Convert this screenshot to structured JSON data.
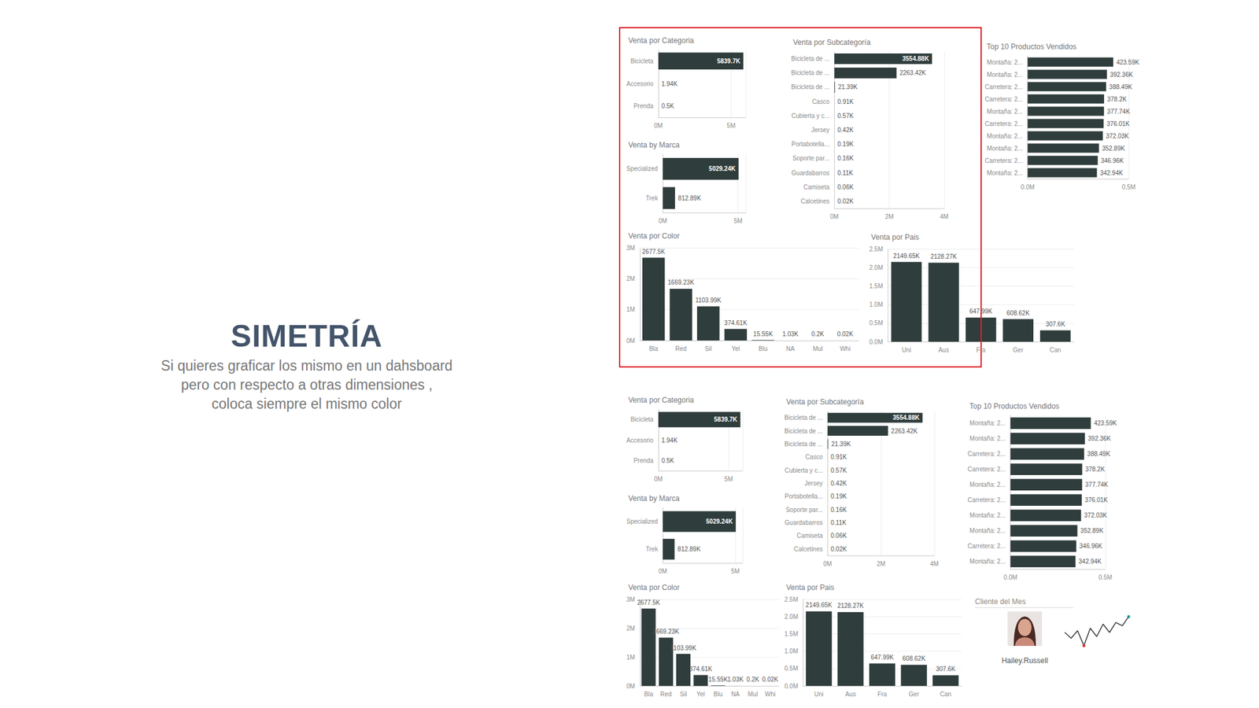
{
  "slide": {
    "title": "SIMETRÍA",
    "text": [
      "Si quieres graficar los mismo en un dahsboard",
      "pero con respecto a otras dimensiones ,",
      "coloca siempre el mismo color"
    ]
  },
  "chart_data": [
    {
      "type": "bar",
      "title": "Venta por Categoria",
      "orientation": "horizontal",
      "categories": [
        "Bicicleta",
        "Accesorio",
        "Prenda"
      ],
      "values": [
        5839700,
        1940,
        500
      ],
      "value_labels": [
        "5839.7K",
        "1.94K",
        "0.5K"
      ],
      "color": "#2f3d3c",
      "xlim": [
        0,
        6000000
      ],
      "xticks": [
        {
          "value": 0,
          "label": "0M"
        },
        {
          "value": 5000000,
          "label": "5M"
        }
      ],
      "grid": true,
      "data_labels": true
    },
    {
      "type": "bar",
      "title": "Venta por Subcategoría",
      "orientation": "horizontal",
      "categories": [
        "Bicicleta de ...",
        "Bicicleta de ...",
        "Bicicleta de ...",
        "Casco",
        "Cubierta y c...",
        "Jersey",
        "Portabotella...",
        "Soporte par...",
        "Guardabarros",
        "Camiseta",
        "Calcetines"
      ],
      "values": [
        3554880,
        2263420,
        21390,
        910,
        570,
        420,
        190,
        160,
        110,
        60,
        20
      ],
      "value_labels": [
        "3554.88K",
        "2263.42K",
        "21.39K",
        "0.91K",
        "0.57K",
        "0.42K",
        "0.19K",
        "0.16K",
        "0.11K",
        "0.06K",
        "0.02K"
      ],
      "color": "#2f3d3c",
      "xlim": [
        0,
        4000000
      ],
      "xticks": [
        {
          "value": 0,
          "label": "0M"
        },
        {
          "value": 2000000,
          "label": "2M"
        },
        {
          "value": 4000000,
          "label": "4M"
        }
      ],
      "grid": true,
      "data_labels": true
    },
    {
      "type": "bar",
      "title": "Top 10 Productos Vendidos",
      "orientation": "horizontal",
      "categories": [
        "Montaña: 2...",
        "Montaña: 2...",
        "Carretera: 2...",
        "Carretera: 2...",
        "Montaña: 2...",
        "Carretera: 2...",
        "Montaña: 2...",
        "Montaña: 2...",
        "Carretera: 2...",
        "Montaña: 2..."
      ],
      "values": [
        423590,
        392360,
        388490,
        378200,
        377740,
        376010,
        372030,
        352890,
        346960,
        342940
      ],
      "value_labels": [
        "423.59K",
        "392.36K",
        "388.49K",
        "378.2K",
        "377.74K",
        "376.01K",
        "372.03K",
        "352.89K",
        "346.96K",
        "342.94K"
      ],
      "color": "#2f3d3c",
      "xlim": [
        0,
        500000
      ],
      "xticks": [
        {
          "value": 0,
          "label": "0.0M"
        },
        {
          "value": 500000,
          "label": "0.5M"
        }
      ],
      "grid": true,
      "data_labels": true
    },
    {
      "type": "bar",
      "title": "Venta by Marca",
      "orientation": "horizontal",
      "categories": [
        "Specialized",
        "Trek"
      ],
      "values": [
        5029240,
        812890
      ],
      "value_labels": [
        "5029.24K",
        "812.89K"
      ],
      "color": "#2f3d3c",
      "xlim": [
        0,
        5500000
      ],
      "xticks": [
        {
          "value": 0,
          "label": "0M"
        },
        {
          "value": 5000000,
          "label": "5M"
        }
      ],
      "grid": true,
      "data_labels": true
    },
    {
      "type": "bar",
      "title": "Venta por Color",
      "categories": [
        "Bla",
        "Red",
        "Sil",
        "Yel",
        "Blu",
        "NA",
        "Mul",
        "Whi"
      ],
      "values": [
        2677500,
        1669230,
        1103990,
        374610,
        15550,
        1030,
        200,
        20
      ],
      "value_labels": [
        "2677.5K",
        "1669.23K",
        "1103.99K",
        "374.61K",
        "15.55K",
        "1.03K",
        "0.2K",
        "0.02K"
      ],
      "color": "#2f3d3c",
      "ylim": [
        0,
        3000000
      ],
      "yticks": [
        {
          "value": 0,
          "label": "0M"
        },
        {
          "value": 1000000,
          "label": "1M"
        },
        {
          "value": 2000000,
          "label": "2M"
        },
        {
          "value": 3000000,
          "label": "3M"
        }
      ],
      "grid": true,
      "data_labels": true
    },
    {
      "type": "bar",
      "title": "Venta por Pais",
      "categories": [
        "Uni",
        "Aus",
        "Fra",
        "Ger",
        "Can"
      ],
      "values": [
        2149650,
        2128270,
        647990,
        608620,
        307600
      ],
      "value_labels": [
        "2149.65K",
        "2128.27K",
        "647.99K",
        "608.62K",
        "307.6K"
      ],
      "color": "#2f3d3c",
      "ylim": [
        0,
        2500000
      ],
      "yticks": [
        {
          "value": 0,
          "label": "0.0M"
        },
        {
          "value": 500000,
          "label": "0.5M"
        },
        {
          "value": 1000000,
          "label": "1.0M"
        },
        {
          "value": 1500000,
          "label": "1.5M"
        },
        {
          "value": 2000000,
          "label": "2.0M"
        },
        {
          "value": 2500000,
          "label": "2.5M"
        }
      ],
      "grid": true,
      "data_labels": true
    }
  ],
  "cliente_del_mes": {
    "title": "Cliente del Mes",
    "name": "Hailey.Russell",
    "type": "line",
    "trend": [
      40,
      33,
      42,
      24,
      45,
      35,
      50,
      40,
      52,
      48,
      59
    ],
    "color": "#333333"
  }
}
